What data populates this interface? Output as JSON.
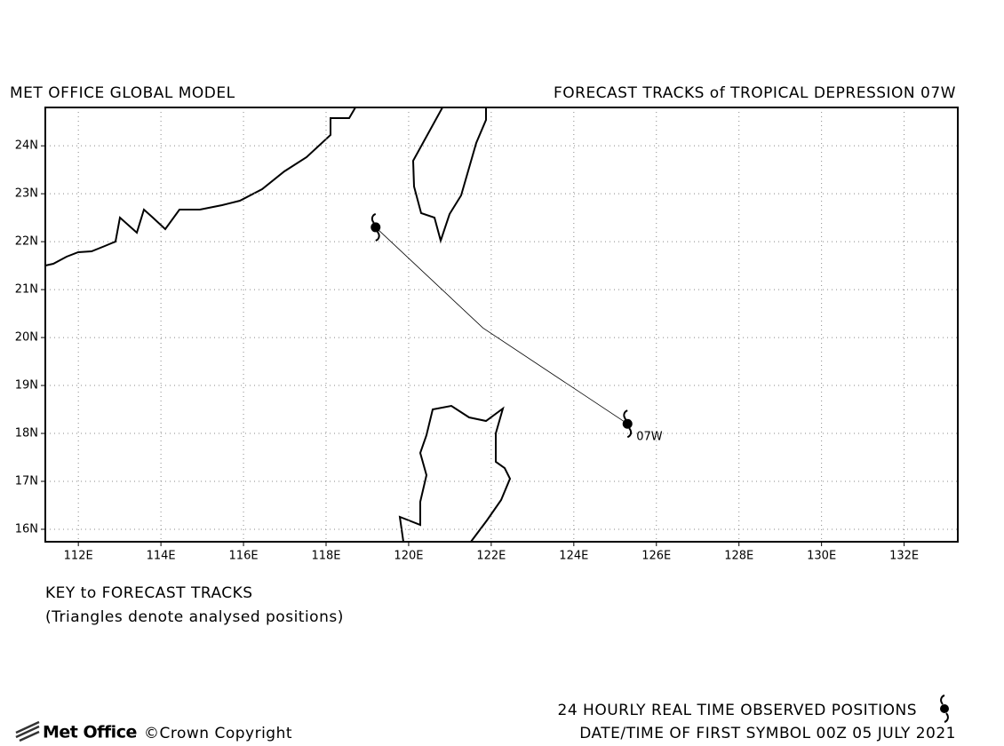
{
  "header": {
    "model": "MET OFFICE GLOBAL MODEL",
    "title": "FORECAST TRACKS of TROPICAL DEPRESSION 07W"
  },
  "map": {
    "xlim": [
      111.2,
      133.3
    ],
    "ylim": [
      15.74,
      24.8
    ],
    "xticks": [
      {
        "value": 112,
        "label": "112E"
      },
      {
        "value": 114,
        "label": "114E"
      },
      {
        "value": 116,
        "label": "116E"
      },
      {
        "value": 118,
        "label": "118E"
      },
      {
        "value": 120,
        "label": "120E"
      },
      {
        "value": 122,
        "label": "122E"
      },
      {
        "value": 124,
        "label": "124E"
      },
      {
        "value": 126,
        "label": "126E"
      },
      {
        "value": 128,
        "label": "128E"
      },
      {
        "value": 130,
        "label": "130E"
      },
      {
        "value": 132,
        "label": "132E"
      }
    ],
    "yticks": [
      {
        "value": 16,
        "label": "16N"
      },
      {
        "value": 17,
        "label": "17N"
      },
      {
        "value": 18,
        "label": "18N"
      },
      {
        "value": 19,
        "label": "19N"
      },
      {
        "value": 20,
        "label": "20N"
      },
      {
        "value": 21,
        "label": "21N"
      },
      {
        "value": 22,
        "label": "22N"
      },
      {
        "value": 23,
        "label": "23N"
      },
      {
        "value": 24,
        "label": "24N"
      }
    ],
    "grid": true,
    "track": {
      "name": "07W",
      "lon": [
        125.3,
        121.8,
        119.2
      ],
      "lat": [
        18.2,
        20.2,
        22.3
      ]
    }
  },
  "key": {
    "title": "KEY to FORECAST TRACKS",
    "note": "(Triangles denote analysed positions)"
  },
  "footer": {
    "logo": "Met Office",
    "copyright": "©Crown Copyright",
    "observed": "24 HOURLY REAL TIME OBSERVED POSITIONS",
    "datetime": "DATE/TIME OF FIRST SYMBOL 00Z 05 JULY 2021"
  }
}
